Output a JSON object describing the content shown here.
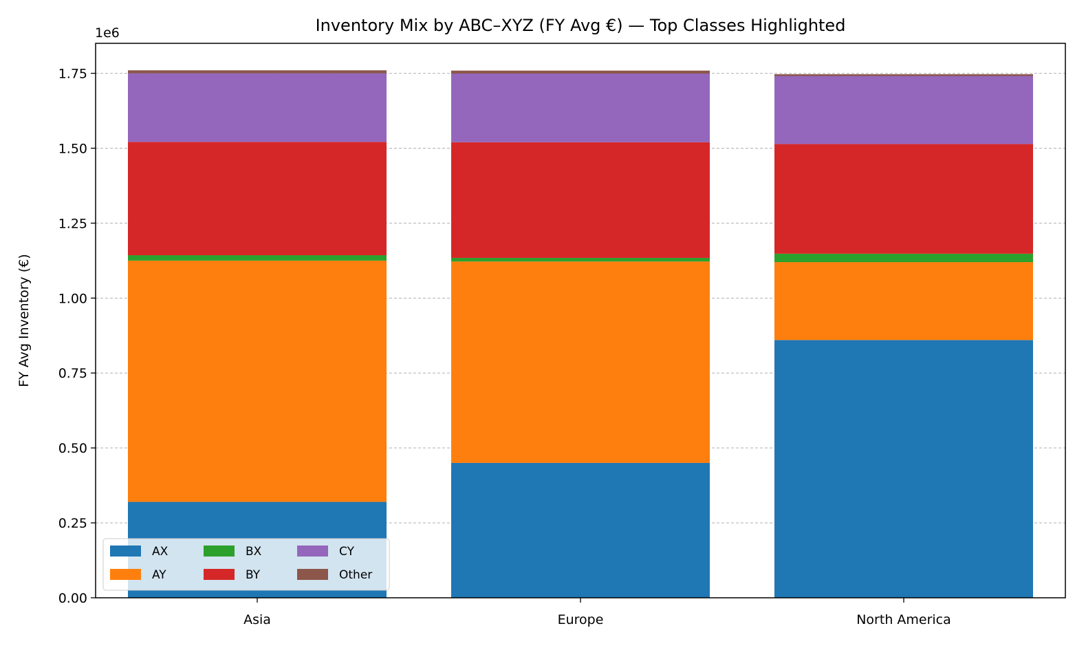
{
  "chart_data": {
    "type": "bar",
    "stacked": true,
    "title": "Inventory Mix by ABC–XYZ (FY Avg €) — Top Classes Highlighted",
    "xlabel": "",
    "ylabel": "FY Avg Inventory (€)",
    "y_offset_text": "1e6",
    "ylim": [
      0,
      1850000
    ],
    "yticks": [
      0,
      250000,
      500000,
      750000,
      1000000,
      1250000,
      1500000,
      1750000
    ],
    "ytick_labels": [
      "0.00",
      "0.25",
      "0.50",
      "0.75",
      "1.00",
      "1.25",
      "1.50",
      "1.75"
    ],
    "grid": "horizontal dashed",
    "legend_position": "lower-left",
    "categories": [
      "Asia",
      "Europe",
      "North America"
    ],
    "series": [
      {
        "name": "AX",
        "color": "#1f77b4",
        "values": [
          320000,
          450000,
          860000
        ]
      },
      {
        "name": "AY",
        "color": "#ff7f0e",
        "values": [
          805000,
          672000,
          260000
        ]
      },
      {
        "name": "BX",
        "color": "#2ca02c",
        "values": [
          18000,
          12000,
          28000
        ]
      },
      {
        "name": "BY",
        "color": "#d62728",
        "values": [
          378000,
          386000,
          366000
        ]
      },
      {
        "name": "CY",
        "color": "#9467bd",
        "values": [
          229000,
          229000,
          227000
        ]
      },
      {
        "name": "Other",
        "color": "#8c564b",
        "values": [
          10000,
          10000,
          6000
        ]
      }
    ]
  }
}
